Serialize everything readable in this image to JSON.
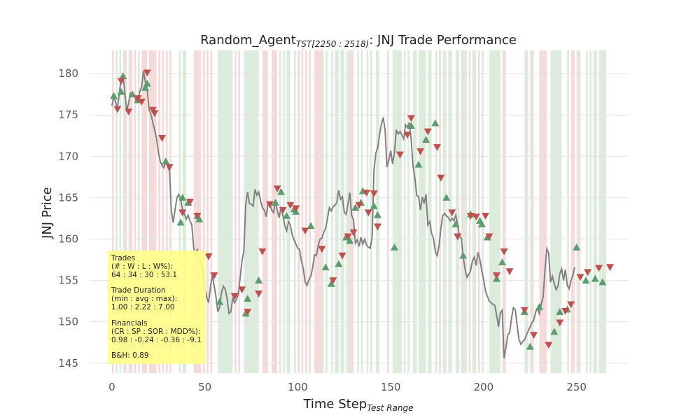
{
  "chart_data": {
    "type": "line",
    "title": {
      "prefix": "Random_Agent",
      "subscript": "TST[2250 : 2518)",
      "suffix": ": JNJ Trade Performance"
    },
    "xlabel": {
      "main": "Time Step",
      "subscript": "Test Range"
    },
    "ylabel": "JNJ Price",
    "xlim": [
      -12,
      278
    ],
    "ylim": [
      143.8,
      182.8
    ],
    "x_ticks": [
      0,
      50,
      100,
      150,
      200,
      250
    ],
    "y_ticks": [
      145,
      150,
      155,
      160,
      165,
      170,
      175,
      180
    ],
    "grid": "horizontal",
    "colors": {
      "line": "#808080",
      "buy": "#5a9e6f",
      "sell": "#c0504d",
      "long_band": "#dcebdc",
      "short_band": "#f5dada",
      "stats_box": "#ffff88"
    },
    "series": [
      {
        "values": [
          176.1,
          177.2,
          176.5,
          175.9,
          177.7,
          179.3,
          179.8,
          177.6,
          175.4,
          176.5,
          177.6,
          177.2,
          177.4,
          176.7,
          176.6,
          177.8,
          178.4,
          180.3,
          179.0,
          178.1,
          175.6,
          175.1,
          174.1,
          173.2,
          172.2,
          170.5,
          169.4,
          168.9,
          168.6,
          169.6,
          168.8,
          168.2,
          163.4,
          162.0,
          163.6,
          165.0,
          165.4,
          164.8,
          163.5,
          163.0,
          162.4,
          162.9,
          162.2,
          161.7,
          158.9,
          158.1,
          158.8,
          157.1,
          157.4,
          155.8,
          154.0,
          153.0,
          152.3,
          154.2,
          155.6,
          154.4,
          153.0,
          151.2,
          151.8,
          153.6,
          154.3,
          153.9,
          152.8,
          151.0,
          151.2,
          152.9,
          152.3,
          152.7,
          153.4,
          155.3,
          157.4,
          158.5,
          164.2,
          165.7,
          164.3,
          164.2,
          164.0,
          166.0,
          165.3,
          165.7,
          164.6,
          163.8,
          163.5,
          162.7,
          164.3,
          164.2,
          163.5,
          163.2,
          164.6,
          163.4,
          162.6,
          163.9,
          162.8,
          161.7,
          161.0,
          162.1,
          161.7,
          160.5,
          159.9,
          159.4,
          158.9,
          158.7,
          157.3,
          156.4,
          154.8,
          154.4,
          155.1,
          155.5,
          156.5,
          158.1,
          158.0,
          159.2,
          160.0,
          160.1,
          160.8,
          161.3,
          162.5,
          163.8,
          163.4,
          163.9,
          164.1,
          164.4,
          165.9,
          164.8,
          165.1,
          163.3,
          163.0,
          164.2,
          165.6,
          162.9,
          162.3,
          159.5,
          159.9,
          159.1,
          160.2,
          159.4,
          160.0,
          159.3,
          159.0,
          158.9,
          160.2,
          168.3,
          170.4,
          171.0,
          172.6,
          173.9,
          174.7,
          173.1,
          168.7,
          169.5,
          170.7,
          169.1,
          170.4,
          173.2,
          172.7,
          173.0,
          172.6,
          172.1,
          173.8,
          173.5,
          174.1,
          172.1,
          168.8,
          167.4,
          165.3,
          165.1,
          163.5,
          165.1,
          164.3,
          165.4,
          161.7,
          162.1,
          160.7,
          160.1,
          158.5,
          158.0,
          159.2,
          161.3,
          162.8,
          163.1,
          162.8,
          162.6,
          162.2,
          162.5,
          162.2,
          162.9,
          161.8,
          160.3,
          160.1,
          157.9,
          156.4,
          155.4,
          155.7,
          156.2,
          157.4,
          157.8,
          156.8,
          158.4,
          157.5,
          156.2,
          155.1,
          153.7,
          153.1,
          152.5,
          152.3,
          152.1,
          152.0,
          150.8,
          149.4,
          151.1,
          151.4,
          145.6,
          146.9,
          148.4,
          148.7,
          150.4,
          151.7,
          151.5,
          149.6,
          147.9,
          147.3,
          147.6,
          147.8,
          148.4,
          148.9,
          149.4,
          149.9,
          150.2,
          151.2,
          151.6,
          151.0,
          152.1,
          153.0,
          156.2,
          158.8,
          158.3,
          154.8,
          155.5,
          154.6,
          153.9,
          154.3,
          155.8,
          156.4,
          155.0,
          156.3,
          154.4,
          154.0,
          155.0,
          155.6,
          156.6
        ]
      }
    ],
    "buy_markers": [
      [
        1,
        177.3
      ],
      [
        5,
        177.8
      ],
      [
        6,
        179.7
      ],
      [
        11,
        177.5
      ],
      [
        14,
        176.8
      ],
      [
        18,
        178.3
      ],
      [
        19,
        178.8
      ],
      [
        29,
        169.4
      ],
      [
        37,
        162.0
      ],
      [
        38,
        165.0
      ],
      [
        41,
        164.4
      ],
      [
        46,
        162.8
      ],
      [
        47,
        162.4
      ],
      [
        58,
        152.4
      ],
      [
        72,
        151.0
      ],
      [
        73,
        152.8
      ],
      [
        79,
        155.0
      ],
      [
        88,
        164.4
      ],
      [
        91,
        165.7
      ],
      [
        94,
        162.8
      ],
      [
        98,
        163.6
      ],
      [
        99,
        163.3
      ],
      [
        107,
        161.6
      ],
      [
        115,
        156.6
      ],
      [
        118,
        154.6
      ],
      [
        122,
        157.0
      ],
      [
        126,
        160.2
      ],
      [
        128,
        159.8
      ],
      [
        131,
        163.8
      ],
      [
        134,
        164.4
      ],
      [
        135,
        165.8
      ],
      [
        141,
        164.0
      ],
      [
        143,
        162.9
      ],
      [
        152,
        159.0
      ],
      [
        161,
        173.7
      ],
      [
        165,
        169.0
      ],
      [
        169,
        172.0
      ],
      [
        174,
        174.0
      ],
      [
        180,
        165.0
      ],
      [
        185,
        161.8
      ],
      [
        189,
        158.0
      ],
      [
        193,
        163.0
      ],
      [
        198,
        162.2
      ],
      [
        199,
        161.8
      ],
      [
        202,
        160.2
      ],
      [
        207,
        155.2
      ],
      [
        210,
        157.2
      ],
      [
        222,
        151.2
      ],
      [
        225,
        147.0
      ],
      [
        230,
        151.8
      ],
      [
        238,
        148.8
      ],
      [
        241,
        151.2
      ],
      [
        245,
        151.5
      ],
      [
        250,
        159.0
      ],
      [
        255,
        155.0
      ],
      [
        260,
        155.2
      ],
      [
        264,
        154.8
      ]
    ],
    "sell_markers": [
      [
        3,
        175.7
      ],
      [
        5,
        179.1
      ],
      [
        9,
        175.4
      ],
      [
        14,
        177.0
      ],
      [
        16,
        176.6
      ],
      [
        19,
        180.1
      ],
      [
        22,
        175.6
      ],
      [
        23,
        175.2
      ],
      [
        27,
        172.2
      ],
      [
        31,
        168.7
      ],
      [
        38,
        163.2
      ],
      [
        42,
        164.5
      ],
      [
        46,
        162.8
      ],
      [
        52,
        157.9
      ],
      [
        55,
        155.6
      ],
      [
        66,
        153.1
      ],
      [
        70,
        153.9
      ],
      [
        73,
        151.2
      ],
      [
        79,
        153.4
      ],
      [
        81,
        158.5
      ],
      [
        85,
        164.2
      ],
      [
        89,
        166.1
      ],
      [
        92,
        163.5
      ],
      [
        96,
        164.1
      ],
      [
        99,
        163.7
      ],
      [
        104,
        161.0
      ],
      [
        113,
        158.8
      ],
      [
        119,
        155.0
      ],
      [
        124,
        158.0
      ],
      [
        127,
        160.3
      ],
      [
        130,
        160.8
      ],
      [
        133,
        164.1
      ],
      [
        137,
        165.6
      ],
      [
        138,
        163.2
      ],
      [
        141,
        165.5
      ],
      [
        143,
        161.5
      ],
      [
        155,
        170.2
      ],
      [
        159,
        172.6
      ],
      [
        161,
        174.6
      ],
      [
        166,
        170.6
      ],
      [
        170,
        173.0
      ],
      [
        175,
        171.1
      ],
      [
        177,
        167.4
      ],
      [
        183,
        163.2
      ],
      [
        186,
        160.3
      ],
      [
        193,
        162.8
      ],
      [
        196,
        162.7
      ],
      [
        201,
        162.8
      ],
      [
        203,
        160.3
      ],
      [
        207,
        155.6
      ],
      [
        211,
        158.5
      ],
      [
        214,
        156.1
      ],
      [
        222,
        151.4
      ],
      [
        227,
        148.4
      ],
      [
        235,
        147.2
      ],
      [
        241,
        149.9
      ],
      [
        244,
        151.3
      ],
      [
        247,
        152.1
      ],
      [
        252,
        155.4
      ],
      [
        256,
        156.0
      ],
      [
        262,
        156.5
      ],
      [
        268,
        156.6
      ]
    ],
    "long_periods": [
      [
        2,
        3
      ],
      [
        4,
        5
      ],
      [
        6,
        7
      ],
      [
        14,
        15
      ],
      [
        36,
        37
      ],
      [
        38,
        40
      ],
      [
        57,
        65
      ],
      [
        71,
        79
      ],
      [
        90,
        91
      ],
      [
        92,
        93
      ],
      [
        94,
        96
      ],
      [
        98,
        99
      ],
      [
        113,
        114
      ],
      [
        115,
        116
      ],
      [
        118,
        119
      ],
      [
        120,
        122
      ],
      [
        123,
        125
      ],
      [
        126,
        129
      ],
      [
        132,
        133
      ],
      [
        134,
        135
      ],
      [
        137,
        138
      ],
      [
        139,
        140
      ],
      [
        142,
        144
      ],
      [
        151,
        156
      ],
      [
        157,
        158
      ],
      [
        159,
        160
      ],
      [
        162,
        164
      ],
      [
        165,
        169
      ],
      [
        170,
        172
      ],
      [
        174,
        175
      ],
      [
        178,
        180
      ],
      [
        181,
        183
      ],
      [
        185,
        187
      ],
      [
        189,
        191
      ],
      [
        194,
        196
      ],
      [
        199,
        200
      ],
      [
        203,
        209
      ],
      [
        210,
        211
      ],
      [
        222,
        224
      ],
      [
        225,
        226
      ],
      [
        236,
        242
      ],
      [
        245,
        246
      ],
      [
        250,
        251
      ],
      [
        255,
        256
      ],
      [
        257,
        258
      ],
      [
        259,
        261
      ],
      [
        262,
        266
      ]
    ],
    "short_periods": [
      [
        0,
        1
      ],
      [
        7,
        8
      ],
      [
        9,
        11
      ],
      [
        12,
        13
      ],
      [
        16,
        19
      ],
      [
        20,
        24
      ],
      [
        25,
        26
      ],
      [
        27,
        28
      ],
      [
        29,
        30
      ],
      [
        31,
        32
      ],
      [
        44,
        48
      ],
      [
        49,
        50
      ],
      [
        51,
        52
      ],
      [
        53,
        54
      ],
      [
        66,
        67
      ],
      [
        68,
        69
      ],
      [
        81,
        84
      ],
      [
        86,
        89
      ],
      [
        100,
        101
      ],
      [
        102,
        103
      ],
      [
        104,
        105
      ],
      [
        106,
        107
      ],
      [
        109,
        113
      ],
      [
        128,
        130
      ],
      [
        148,
        149
      ],
      [
        176,
        177
      ],
      [
        188,
        189
      ],
      [
        192,
        193
      ],
      [
        197,
        198
      ],
      [
        211,
        212
      ],
      [
        226,
        227
      ],
      [
        230,
        234
      ],
      [
        247,
        249
      ],
      [
        251,
        252
      ]
    ]
  },
  "stats_box": {
    "trades_header": "Trades",
    "trades_fields": "(# : W : L : W%):",
    "trades_values": "64 : 34 : 30 : 53.1",
    "duration_header": "Trade Duration",
    "duration_fields": "(min : avg : max):",
    "duration_values": "1.00 : 2.22 : 7.00",
    "financials_header": "Financials",
    "financials_fields": "(CR : SP : SOR : MDD%):",
    "financials_values": "0.98 : -0.24 : -0.36 : -9.1",
    "bh": "B&H: 0.89"
  }
}
